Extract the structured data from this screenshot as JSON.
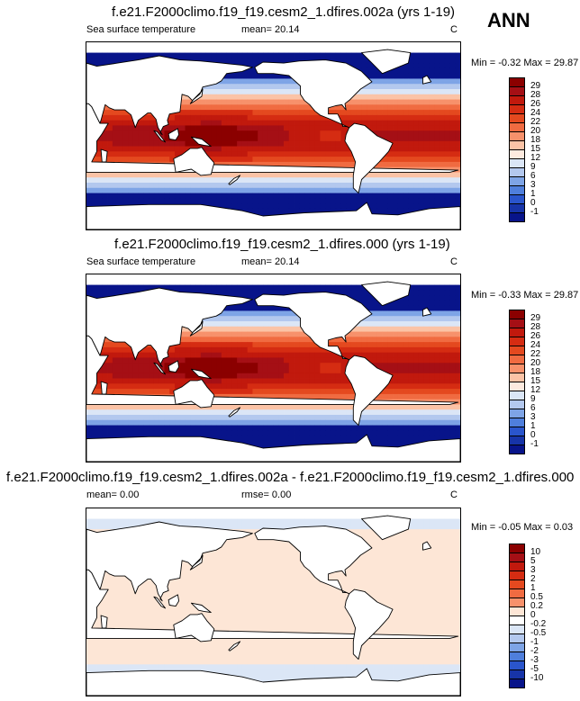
{
  "ann_label": "ANN",
  "panels": [
    {
      "title": "f.e21.F2000climo.f19_f19.cesm2_1.dfires.002a (yrs 1-19)",
      "left_label": "Sea surface temperature",
      "stat1": "mean=  20.14",
      "stat2": "",
      "units": "C",
      "minmax": "Min =  -0.32 Max =  29.87",
      "field": "sst",
      "colorbar": {
        "labels": [
          "29",
          "28",
          "26",
          "24",
          "22",
          "20",
          "18",
          "15",
          "12",
          "9",
          "6",
          "3",
          "1",
          "0",
          "-1"
        ],
        "colors": [
          "#8b0000",
          "#a50f15",
          "#c1190d",
          "#d52c12",
          "#e4491f",
          "#f06b41",
          "#f7916b",
          "#fbc3a6",
          "#fdeadf",
          "#dbe6f6",
          "#b3c8ee",
          "#7ea4e6",
          "#4f7fdc",
          "#2a55cc",
          "#1734a8",
          "#08148a"
        ]
      }
    },
    {
      "title": "f.e21.F2000climo.f19_f19.cesm2_1.dfires.000 (yrs 1-19)",
      "left_label": "Sea surface temperature",
      "stat1": "mean=  20.14",
      "stat2": "",
      "units": "C",
      "minmax": "Min =  -0.33 Max =  29.87",
      "field": "sst",
      "colorbar": {
        "labels": [
          "29",
          "28",
          "26",
          "24",
          "22",
          "20",
          "18",
          "15",
          "12",
          "9",
          "6",
          "3",
          "1",
          "0",
          "-1"
        ],
        "colors": [
          "#8b0000",
          "#a50f15",
          "#c1190d",
          "#d52c12",
          "#e4491f",
          "#f06b41",
          "#f7916b",
          "#fbc3a6",
          "#fdeadf",
          "#dbe6f6",
          "#b3c8ee",
          "#7ea4e6",
          "#4f7fdc",
          "#2a55cc",
          "#1734a8",
          "#08148a"
        ]
      }
    },
    {
      "title": "f.e21.F2000climo.f19_f19.cesm2_1.dfires.002a - f.e21.F2000climo.f19_f19.cesm2_1.dfires.000",
      "left_label": "mean=  0.00",
      "stat1": "rmse=  0.00",
      "stat2": "",
      "units": "C",
      "minmax": "Min =  -0.05 Max =  0.03",
      "field": "diff",
      "colorbar": {
        "labels": [
          "10",
          "5",
          "3",
          "2",
          "1",
          "0.5",
          "0.2",
          "0",
          "-0.2",
          "-0.5",
          "-1",
          "-2",
          "-3",
          "-5",
          "-10"
        ],
        "colors": [
          "#8b0000",
          "#a50f15",
          "#c1190d",
          "#d52c12",
          "#e4491f",
          "#f06b41",
          "#f7916b",
          "#fde6d6",
          "#ffffff",
          "#dbe6f6",
          "#b3c8ee",
          "#7ea4e6",
          "#4f7fdc",
          "#2a55cc",
          "#1734a8",
          "#08148a"
        ]
      }
    }
  ]
}
